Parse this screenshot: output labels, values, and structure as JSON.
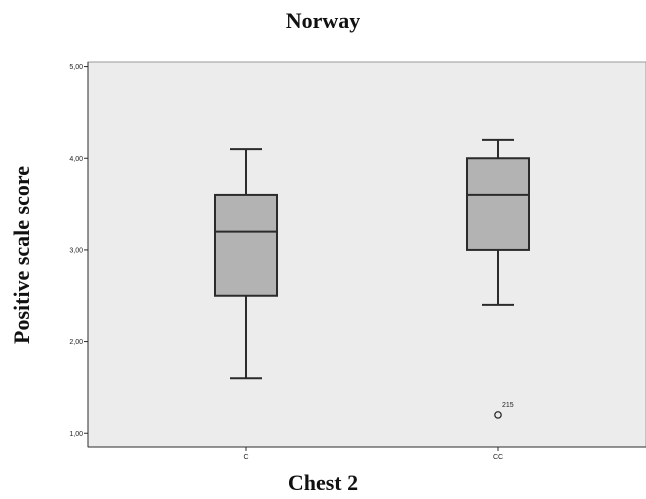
{
  "chart_data": {
    "type": "boxplot",
    "title": "Norway",
    "xlabel": "Chest 2",
    "ylabel": "Positive scale score",
    "ylim": [
      0.85,
      5.05
    ],
    "yticks": [
      "1,00",
      "2,00",
      "3,00",
      "4,00",
      "5,00"
    ],
    "ytick_values": [
      1,
      2,
      3,
      4,
      5
    ],
    "categories": [
      "C",
      "CC"
    ],
    "boxes": [
      {
        "category": "C",
        "min": 1.6,
        "q1": 2.5,
        "median": 3.2,
        "q3": 3.6,
        "max": 4.1,
        "outliers": []
      },
      {
        "category": "CC",
        "min": 2.4,
        "q1": 3.0,
        "median": 3.6,
        "q3": 4.0,
        "max": 4.2,
        "outliers": [
          {
            "value": 1.2,
            "label": "215"
          }
        ]
      }
    ],
    "grid": false,
    "colors": {
      "plot_background": "#ececec",
      "box_fill": "#b3b3b3",
      "stroke": "#2b2b2b"
    }
  }
}
